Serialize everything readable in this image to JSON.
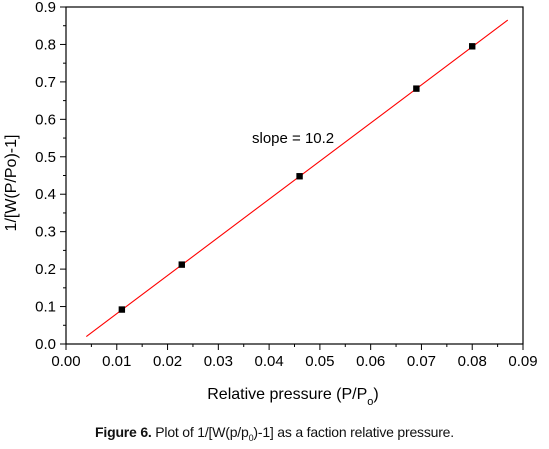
{
  "chart_data": {
    "type": "scatter",
    "xlabel": "Relative pressure (P/P",
    "xlabel_sub": "o",
    "xlabel_tail": ")",
    "ylabel": "1/[W(P/Po)-1]",
    "xlim": [
      0.0,
      0.09
    ],
    "ylim": [
      0.0,
      0.9
    ],
    "xticks": [
      "0.00",
      "0.01",
      "0.02",
      "0.03",
      "0.04",
      "0.05",
      "0.06",
      "0.07",
      "0.08",
      "0.09"
    ],
    "yticks": [
      "0.0",
      "0.1",
      "0.2",
      "0.3",
      "0.4",
      "0.5",
      "0.6",
      "0.7",
      "0.8",
      "0.9"
    ],
    "grid": false,
    "series": [
      {
        "points": [
          {
            "x": 0.011,
            "y": 0.092
          },
          {
            "x": 0.0228,
            "y": 0.212
          },
          {
            "x": 0.046,
            "y": 0.448
          },
          {
            "x": 0.069,
            "y": 0.682
          },
          {
            "x": 0.08,
            "y": 0.795
          }
        ],
        "marker_color": "#000000"
      }
    ],
    "fit_line": {
      "x": [
        0.004,
        0.087
      ],
      "y": [
        0.02,
        0.865
      ],
      "color": "#ff0000"
    },
    "annotation": "slope = 10.2"
  },
  "caption": {
    "label": "Figure 6.",
    "text_before": " Plot of 1/[W(p/p",
    "sub": "0",
    "text_after": ")-1] as a faction relative pressure."
  }
}
